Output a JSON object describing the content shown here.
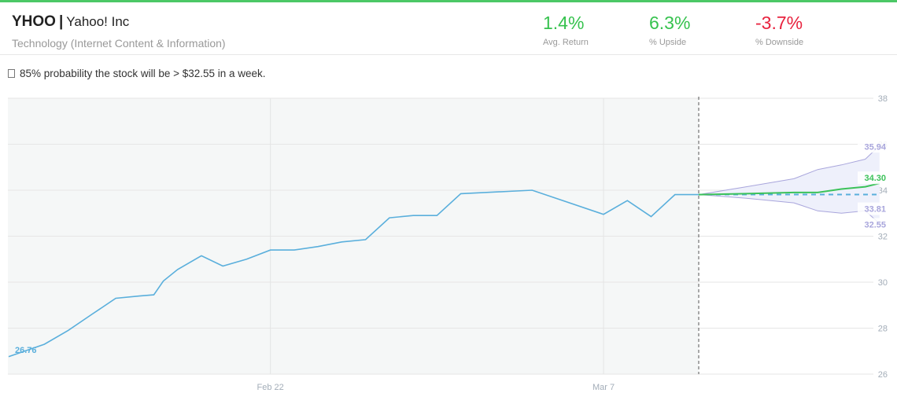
{
  "header": {
    "ticker": "YHOO",
    "separator": "|",
    "company": "Yahoo! Inc",
    "sector": "Technology (Internet Content & Information)"
  },
  "stats": [
    {
      "value": "1.4%",
      "label": "Avg. Return",
      "color": "#36c24e"
    },
    {
      "value": "6.3%",
      "label": "% Upside",
      "color": "#36c24e"
    },
    {
      "value": "-3.7%",
      "label": "% Downside",
      "color": "#e8223e"
    }
  ],
  "probability": {
    "icon": "document-icon",
    "text": "85% probability the stock will be > $32.55 in a week."
  },
  "colors": {
    "history": "#5aafdc",
    "forecast_mean": "#3cc25a",
    "band_fill": "#eef0fb",
    "band_line": "#a9a6dc",
    "divider": "#555555",
    "plot_bg": "#f5f7f7"
  },
  "chart_data": {
    "type": "line",
    "ylim": [
      26,
      38
    ],
    "y_ticks": [
      26,
      28,
      30,
      32,
      34,
      36,
      38
    ],
    "x_ticks": [
      {
        "label": "Feb 22",
        "x": 11
      },
      {
        "label": "Mar 7",
        "x": 25
      }
    ],
    "grid": true,
    "start_label": "26.76",
    "history": {
      "x": [
        0,
        1.5,
        2.5,
        3.5,
        4.5,
        5.5,
        6.1,
        6.5,
        7.1,
        8.1,
        9,
        10,
        11,
        12,
        13,
        14,
        15,
        16,
        17,
        18,
        19,
        20,
        21,
        22,
        25,
        26,
        27,
        28,
        29
      ],
      "y": [
        26.76,
        27.3,
        27.9,
        28.6,
        29.3,
        29.4,
        29.45,
        30.05,
        30.55,
        31.15,
        30.7,
        31.0,
        31.4,
        31.4,
        31.55,
        31.75,
        31.85,
        32.8,
        32.9,
        32.9,
        33.85,
        33.9,
        33.95,
        34.0,
        32.95,
        33.55,
        32.85,
        33.81,
        33.81
      ],
      "x_domain": [
        0,
        29
      ]
    },
    "forecast": {
      "x": [
        29,
        31,
        33,
        34,
        35,
        36,
        36.6
      ],
      "mean": [
        33.81,
        33.85,
        33.9,
        33.9,
        34.05,
        34.15,
        34.3
      ],
      "upper": [
        33.81,
        34.15,
        34.5,
        34.9,
        35.1,
        35.35,
        35.94
      ],
      "lower": [
        33.81,
        33.65,
        33.45,
        33.1,
        33.0,
        33.1,
        32.55
      ],
      "baseline": 33.81
    },
    "end_labels": [
      {
        "text": "35.94",
        "value": 35.94,
        "color": "#a9a6dc"
      },
      {
        "text": "34.30",
        "value": 34.3,
        "color": "#3cc25a"
      },
      {
        "text": "33.81",
        "value": 33.81,
        "color": "#a9a6dc"
      },
      {
        "text": "32.55",
        "value": 32.55,
        "color": "#a9a6dc"
      }
    ]
  }
}
